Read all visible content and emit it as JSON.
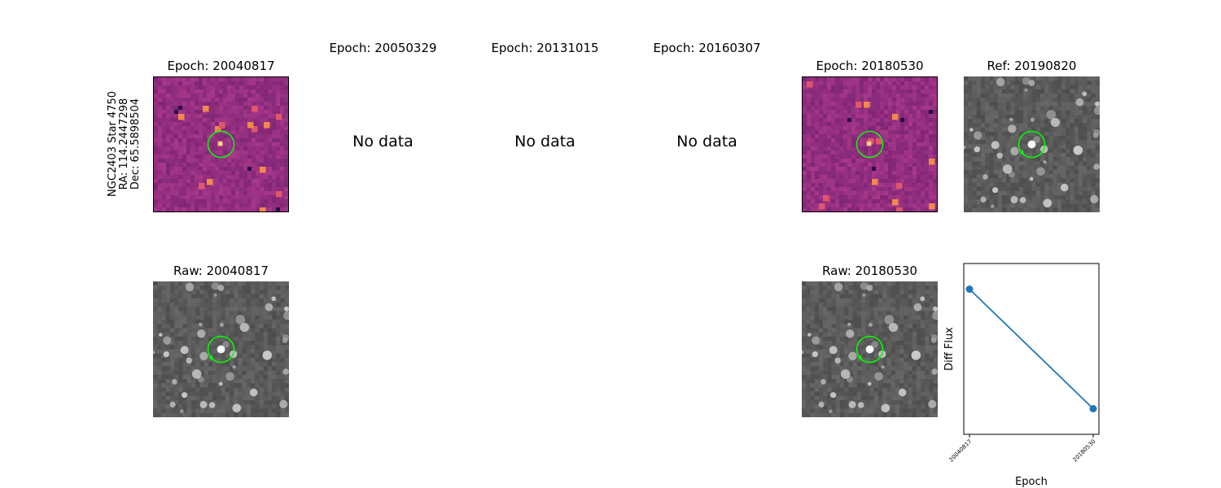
{
  "star_label": {
    "line1": "NGC2403 Star 4750",
    "line2": "RA: 114.2447298",
    "line3": "Dec: 65.5898504"
  },
  "top_row": [
    {
      "title": "Epoch: 20040817",
      "kind": "diff"
    },
    {
      "title": "Epoch: 20050329",
      "kind": "none",
      "message": "No data"
    },
    {
      "title": "Epoch: 20131015",
      "kind": "none",
      "message": "No data"
    },
    {
      "title": "Epoch: 20160307",
      "kind": "none",
      "message": "No data"
    },
    {
      "title": "Epoch: 20180530",
      "kind": "diff"
    },
    {
      "title": "Ref: 20190820",
      "kind": "ref"
    }
  ],
  "bottom_row": [
    {
      "title": "Raw: 20040817",
      "kind": "raw"
    },
    {
      "title": "Raw: 20180530",
      "kind": "raw"
    }
  ],
  "colors": {
    "marker_circle": "#00ff00",
    "diff_background": "#8e2c83",
    "series": "#1f77b4"
  },
  "chart_data": {
    "type": "line",
    "x": [
      "20040817",
      "20180530"
    ],
    "series": [
      {
        "values": [
          0.85,
          0.15
        ]
      }
    ],
    "xlabel": "Epoch",
    "ylabel": "Diff Flux",
    "ylim": [
      0.0,
      1.0
    ]
  }
}
